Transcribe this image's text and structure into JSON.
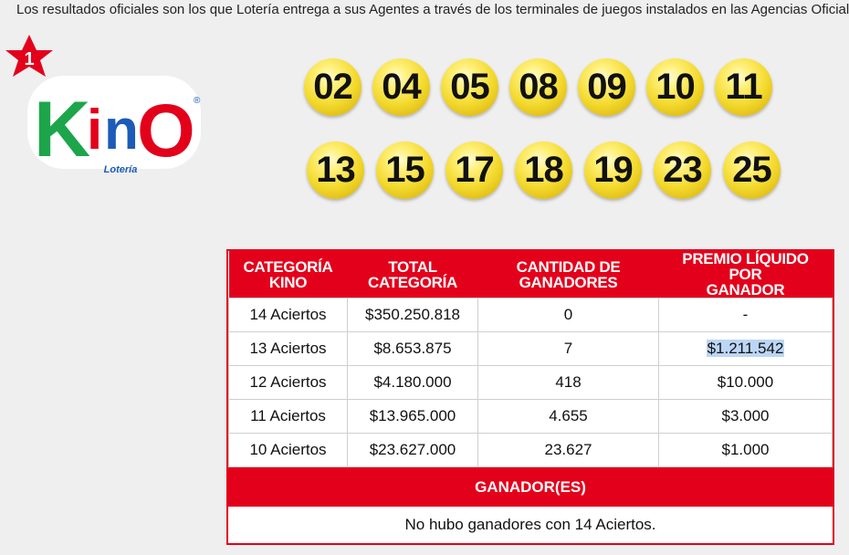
{
  "notice": "Los resultados oficiales son los que Lotería entrega a sus Agentes a través de los terminales de juegos instalados en las Agencias Oficiales.",
  "logo": {
    "badge": "1",
    "letters": [
      "K",
      "i",
      "n",
      "O"
    ],
    "subtitle": "Lotería",
    "registered": "®"
  },
  "numbers": {
    "row1": [
      "02",
      "04",
      "05",
      "08",
      "09",
      "10",
      "11"
    ],
    "row2": [
      "13",
      "15",
      "17",
      "18",
      "19",
      "23",
      "25"
    ]
  },
  "table": {
    "headers": {
      "categoria": [
        "CATEGORÍA",
        "KINO"
      ],
      "total": [
        "TOTAL",
        "CATEGORÍA"
      ],
      "cantidad": [
        "CANTIDAD DE",
        "GANADORES"
      ],
      "premio": [
        "PREMIO LÍQUIDO POR",
        "GANADOR"
      ]
    },
    "rows": [
      {
        "categoria": "14 Aciertos",
        "total": "$350.250.818",
        "ganadores": "0",
        "premio": "-"
      },
      {
        "categoria": "13 Aciertos",
        "total": "$8.653.875",
        "ganadores": "7",
        "premio": "$1.211.542"
      },
      {
        "categoria": "12 Aciertos",
        "total": "$4.180.000",
        "ganadores": "418",
        "premio": "$10.000"
      },
      {
        "categoria": "11 Aciertos",
        "total": "$13.965.000",
        "ganadores": "4.655",
        "premio": "$3.000"
      },
      {
        "categoria": "10 Aciertos",
        "total": "$23.627.000",
        "ganadores": "23.627",
        "premio": "$1.000"
      }
    ],
    "winners_title": "GANADOR(ES)",
    "winners_text": "No hubo ganadores con 14 Aciertos."
  },
  "colors": {
    "accent_red": "#e3001b",
    "ball_yellow": "#f3d92c",
    "selection_highlight": "#bcd6f5"
  }
}
